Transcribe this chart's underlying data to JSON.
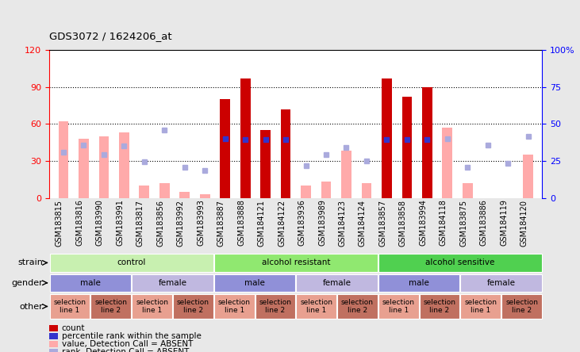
{
  "title": "GDS3072 / 1624206_at",
  "samples": [
    "GSM183815",
    "GSM183816",
    "GSM183990",
    "GSM183991",
    "GSM183817",
    "GSM183856",
    "GSM183992",
    "GSM183993",
    "GSM183887",
    "GSM183888",
    "GSM184121",
    "GSM184122",
    "GSM183936",
    "GSM183989",
    "GSM184123",
    "GSM184124",
    "GSM183857",
    "GSM183858",
    "GSM183994",
    "GSM184118",
    "GSM183875",
    "GSM183886",
    "GSM184119",
    "GSM184120"
  ],
  "red_bars": [
    0,
    0,
    0,
    0,
    0,
    0,
    0,
    0,
    80,
    97,
    55,
    72,
    0,
    0,
    0,
    0,
    97,
    82,
    90,
    0,
    0,
    0,
    0,
    0
  ],
  "pink_bars": [
    62,
    48,
    50,
    53,
    10,
    12,
    5,
    3,
    0,
    0,
    0,
    0,
    10,
    13,
    38,
    12,
    0,
    0,
    0,
    57,
    12,
    0,
    0,
    35
  ],
  "blue_squares": [
    0,
    0,
    0,
    0,
    0,
    0,
    0,
    0,
    48,
    47,
    47,
    47,
    0,
    0,
    0,
    0,
    47,
    47,
    47,
    0,
    0,
    0,
    0,
    0
  ],
  "lavender_squares": [
    37,
    43,
    35,
    42,
    29,
    55,
    25,
    22,
    0,
    0,
    0,
    0,
    26,
    35,
    41,
    30,
    0,
    0,
    0,
    48,
    25,
    43,
    28,
    50
  ],
  "ylim_left": [
    0,
    120
  ],
  "ylim_right": [
    0,
    100
  ],
  "yticks_left": [
    0,
    30,
    60,
    90,
    120
  ],
  "ytick_labels_right": [
    "0",
    "25",
    "50",
    "75",
    "100%"
  ],
  "strain_groups": [
    {
      "label": "control",
      "start": 0,
      "end": 8,
      "color": "#c8f0b0"
    },
    {
      "label": "alcohol resistant",
      "start": 8,
      "end": 16,
      "color": "#90e870"
    },
    {
      "label": "alcohol sensitive",
      "start": 16,
      "end": 24,
      "color": "#50d050"
    }
  ],
  "gender_groups": [
    {
      "label": "male",
      "start": 0,
      "end": 4,
      "color": "#9090d8"
    },
    {
      "label": "female",
      "start": 4,
      "end": 8,
      "color": "#c0b8e0"
    },
    {
      "label": "male",
      "start": 8,
      "end": 12,
      "color": "#9090d8"
    },
    {
      "label": "female",
      "start": 12,
      "end": 16,
      "color": "#c0b8e0"
    },
    {
      "label": "male",
      "start": 16,
      "end": 20,
      "color": "#9090d8"
    },
    {
      "label": "female",
      "start": 20,
      "end": 24,
      "color": "#c0b8e0"
    }
  ],
  "other_groups": [
    {
      "label": "selection\nline 1",
      "start": 0,
      "end": 2,
      "color": "#e8a090"
    },
    {
      "label": "selection\nline 2",
      "start": 2,
      "end": 4,
      "color": "#c07060"
    },
    {
      "label": "selection\nline 1",
      "start": 4,
      "end": 6,
      "color": "#e8a090"
    },
    {
      "label": "selection\nline 2",
      "start": 6,
      "end": 8,
      "color": "#c07060"
    },
    {
      "label": "selection\nline 1",
      "start": 8,
      "end": 10,
      "color": "#e8a090"
    },
    {
      "label": "selection\nline 2",
      "start": 10,
      "end": 12,
      "color": "#c07060"
    },
    {
      "label": "selection\nline 1",
      "start": 12,
      "end": 14,
      "color": "#e8a090"
    },
    {
      "label": "selection\nline 2",
      "start": 14,
      "end": 16,
      "color": "#c07060"
    },
    {
      "label": "selection\nline 1",
      "start": 16,
      "end": 18,
      "color": "#e8a090"
    },
    {
      "label": "selection\nline 2",
      "start": 18,
      "end": 20,
      "color": "#c07060"
    },
    {
      "label": "selection\nline 1",
      "start": 20,
      "end": 22,
      "color": "#e8a090"
    },
    {
      "label": "selection\nline 2",
      "start": 22,
      "end": 24,
      "color": "#c07060"
    }
  ],
  "bar_width": 0.5,
  "red_color": "#cc0000",
  "pink_color": "#ffaaaa",
  "blue_color": "#3333cc",
  "lavender_color": "#aaaadd",
  "bg_color": "#e8e8e8",
  "plot_bg": "#ffffff",
  "label_fontsize": 7,
  "legend_fontsize": 7.5,
  "sq_size": 4
}
